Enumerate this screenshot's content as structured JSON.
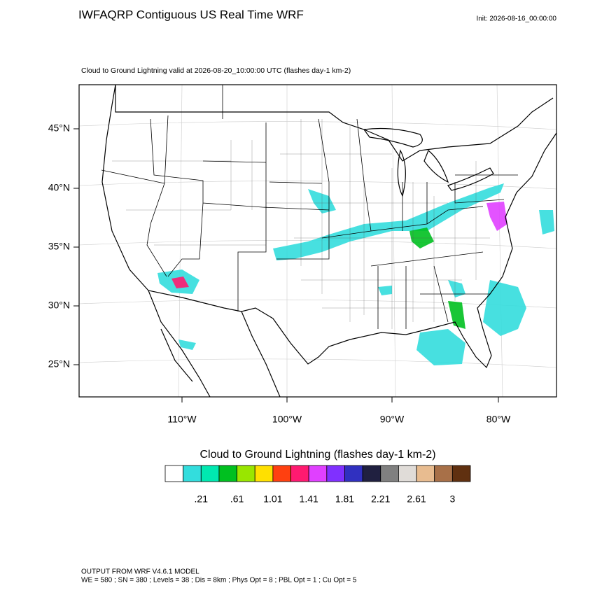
{
  "title": "IWFAQRP Contiguous US Real Time WRF",
  "init": "Init: 2026-08-16_00:00:00",
  "subtitle": "Cloud to Ground Lightning valid at 2026-08-20_10:00:00 UTC   (flashes day-1 km-2)",
  "map": {
    "lat_labels": [
      "45°N",
      "40°N",
      "35°N",
      "30°N",
      "25°N"
    ],
    "lon_labels": [
      "110°W",
      "100°W",
      "90°W",
      "80°W"
    ]
  },
  "colorbar": {
    "title": "Cloud to Ground Lightning  (flashes day-1 km-2)",
    "colors": [
      "#ffffff",
      "#33dddd",
      "#00e8b0",
      "#00c020",
      "#99e600",
      "#ffe000",
      "#ff4010",
      "#ff1a70",
      "#e040ff",
      "#8030ff",
      "#3030c0",
      "#202040",
      "#808080",
      "#e0dcd8",
      "#e8bc90",
      "#a87048",
      "#603010"
    ],
    "labels": [
      ".21",
      ".61",
      "1.01",
      "1.41",
      "1.81",
      "2.21",
      "2.61",
      "3"
    ]
  },
  "footer": {
    "line1": "OUTPUT FROM WRF V4.6.1 MODEL",
    "line2": "WE = 580 ; SN = 380 ; Levels = 38 ; Dis = 8km ; Phys Opt = 8 ; PBL Opt = 1 ; Cu Opt = 5"
  }
}
